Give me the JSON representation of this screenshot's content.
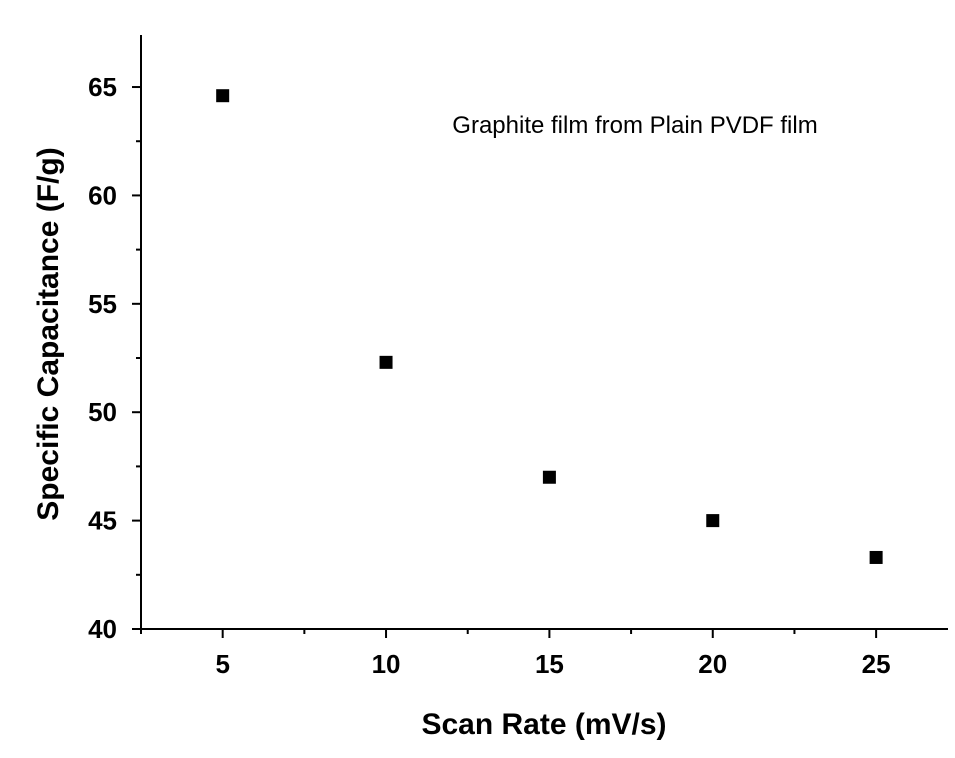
{
  "chart_data": {
    "type": "scatter",
    "x": [
      5,
      10,
      15,
      20,
      25
    ],
    "y": [
      64.6,
      52.3,
      47.0,
      45.0,
      43.3
    ],
    "xlabel": "Scan Rate (mV/s)",
    "ylabel": "Specific Capacitance (F/g)",
    "annotation": "Graphite film from Plain PVDF film",
    "xticks": [
      "5",
      "10",
      "15",
      "20",
      "25"
    ],
    "yticks": [
      "40",
      "45",
      "50",
      "55",
      "60",
      "65"
    ],
    "xlim": [
      2.5,
      27.2
    ],
    "ylim": [
      40,
      67.4
    ],
    "grid": false,
    "legend": "none",
    "marker": "square",
    "marker_color": "#000000"
  }
}
